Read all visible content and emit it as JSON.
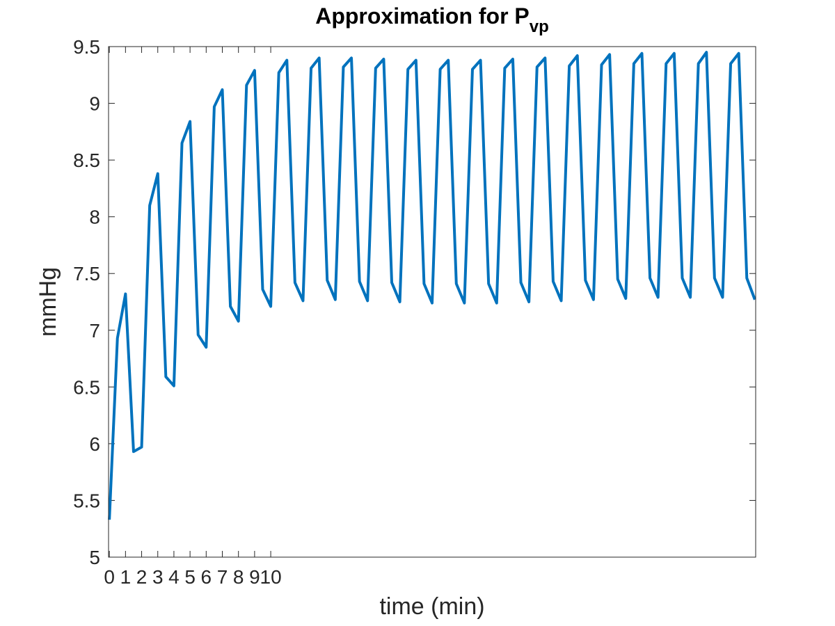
{
  "chart_data": {
    "type": "line",
    "title": "Approximation for P",
    "title_subscript": "vp",
    "xlabel": "time (min)",
    "ylabel": "mmHg",
    "x_tick_labels": [
      "0",
      "1",
      "2",
      "3",
      "4",
      "5",
      "6",
      "7",
      "8",
      "9",
      "10"
    ],
    "xlim": [
      -0.05,
      40.05
    ],
    "ylim": [
      5,
      9.5
    ],
    "y_ticks": [
      5,
      5.5,
      6,
      6.5,
      7,
      7.5,
      8,
      8.5,
      9,
      9.5
    ],
    "y_tick_labels": [
      "5",
      "5.5",
      "6",
      "6.5",
      "7",
      "7.5",
      "8",
      "8.5",
      "9",
      "9.5"
    ],
    "grid": false,
    "box": true,
    "series": [
      {
        "color": "#0072BD",
        "x": [
          0,
          0.5,
          1,
          1.5,
          2,
          2.5,
          3,
          3.5,
          4,
          4.5,
          5,
          5.5,
          6,
          6.5,
          7,
          7.5,
          8,
          8.5,
          9,
          9.5,
          10,
          10.5,
          11,
          11.5,
          12,
          12.5,
          13,
          13.5,
          14,
          14.5,
          15,
          15.5,
          16,
          16.5,
          17,
          17.5,
          18,
          18.5,
          19,
          19.5,
          20,
          20.5,
          21,
          21.5,
          22,
          22.5,
          23,
          23.5,
          24,
          24.5,
          25,
          25.5,
          26,
          26.5,
          27,
          27.5,
          28,
          28.5,
          29,
          29.5,
          30,
          30.5,
          31,
          31.5,
          32,
          32.5,
          33,
          33.5,
          34,
          34.5,
          35,
          35.5,
          36,
          36.5,
          37,
          37.5,
          38,
          38.5,
          39,
          39.5,
          40
        ],
        "y": [
          5.33,
          6.93,
          7.32,
          5.93,
          5.97,
          8.1,
          8.38,
          6.59,
          6.51,
          8.65,
          8.84,
          6.96,
          6.85,
          8.97,
          9.12,
          7.21,
          7.08,
          9.16,
          9.29,
          7.36,
          7.21,
          9.27,
          9.38,
          7.42,
          7.26,
          9.31,
          9.4,
          7.44,
          7.27,
          9.32,
          9.4,
          7.43,
          7.26,
          9.31,
          9.39,
          7.42,
          7.25,
          9.3,
          9.38,
          7.41,
          7.24,
          9.3,
          9.38,
          7.41,
          7.24,
          9.3,
          9.38,
          7.41,
          7.24,
          9.31,
          9.39,
          7.42,
          7.25,
          9.32,
          9.4,
          7.43,
          7.26,
          9.33,
          9.42,
          7.44,
          7.27,
          9.34,
          9.43,
          7.45,
          7.28,
          9.35,
          9.44,
          7.46,
          7.29,
          9.35,
          9.44,
          7.46,
          7.29,
          9.35,
          9.45,
          7.46,
          7.29,
          9.35,
          9.44,
          7.46,
          7.27
        ]
      }
    ]
  }
}
